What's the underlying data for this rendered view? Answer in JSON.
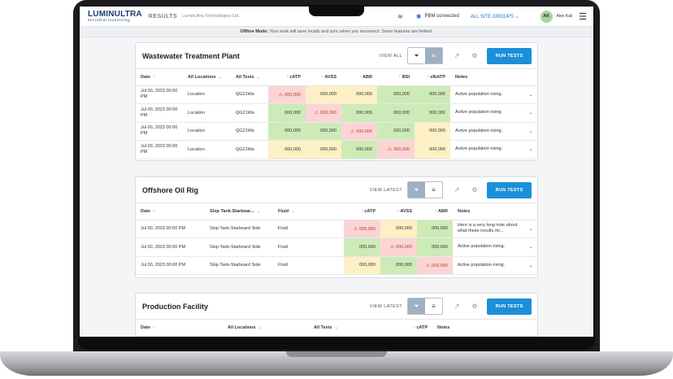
{
  "app": {
    "logo_main": "LUMINULTRA",
    "logo_sub": "microbial monitoring",
    "page": "RESULTS",
    "company": "LuminUltra Technologies Ltd.",
    "pbm_status": "PBM connected",
    "site_groups": "ALL SITE GROUPS",
    "avatar_initials": "AK",
    "user_name": "Alex Kali"
  },
  "offline_banner": {
    "title": "Offline Mode:",
    "message": "Your work will save locally and sync when you reconnect. Some features are limited."
  },
  "colors": {
    "good": "#cdebb7",
    "warning": "#fdf0c4",
    "alert": "#fbd5d5",
    "accent": "#1c8fd8"
  },
  "panels": [
    {
      "title": "Wastewater Treatment Plant",
      "view_label": "VIEW ALL",
      "run_label": "RUN TESTS",
      "headers": [
        "Date",
        "All Locations",
        "All Tests",
        "cATP",
        "AVSS",
        "ABR",
        "BSI",
        "sfbATP",
        "Notes"
      ],
      "rows": [
        {
          "date": "Jul 00, 2023 00:00 PM",
          "location": "Location",
          "test": "QG21Wa",
          "values": [
            {
              "v": "000,000",
              "s": "red"
            },
            {
              "v": "000,000",
              "s": "yellow"
            },
            {
              "v": "000,000",
              "s": "yellow"
            },
            {
              "v": "000,000",
              "s": "green"
            },
            {
              "v": "000,000",
              "s": "green"
            }
          ],
          "note": "Active population rising."
        },
        {
          "date": "Jul 00, 2023 00:00 PM",
          "location": "Location",
          "test": "QG21Wa",
          "values": [
            {
              "v": "000,000",
              "s": "green"
            },
            {
              "v": "000,000",
              "s": "red"
            },
            {
              "v": "000,000",
              "s": "green"
            },
            {
              "v": "000,000",
              "s": "green"
            },
            {
              "v": "000,000",
              "s": "green"
            }
          ],
          "note": "Active population rising."
        },
        {
          "date": "Jul 00, 2023 00:00 PM",
          "location": "Location",
          "test": "QG21Wa",
          "values": [
            {
              "v": "000,000",
              "s": "green"
            },
            {
              "v": "000,000",
              "s": "green"
            },
            {
              "v": "000,000",
              "s": "red"
            },
            {
              "v": "000,000",
              "s": "green"
            },
            {
              "v": "000,000",
              "s": "yellow"
            }
          ],
          "note": "Active population rising."
        },
        {
          "date": "Jul 00, 2023 00:00 PM",
          "location": "Location",
          "test": "QG21Wa",
          "values": [
            {
              "v": "000,000",
              "s": "yellow"
            },
            {
              "v": "000,000",
              "s": "yellow"
            },
            {
              "v": "000,000",
              "s": "green"
            },
            {
              "v": "000,000",
              "s": "red"
            },
            {
              "v": "000,000",
              "s": "yellow"
            }
          ],
          "note": "Active population rising."
        }
      ]
    },
    {
      "title": "Offshore Oil Rig",
      "view_label": "VIEW LATEST",
      "run_label": "RUN TESTS",
      "headers": [
        "Date",
        "Slop Tank-Starboar...",
        "Fluid",
        "cATP",
        "AVSS",
        "ABR",
        "Notes"
      ],
      "rows": [
        {
          "date": "Jul 00, 2023 00:00 PM",
          "location": "Slop Tank-Starboard Side",
          "test": "Fluid",
          "values": [
            {
              "v": "000,000",
              "s": "red"
            },
            {
              "v": "000,000",
              "s": "yellow"
            },
            {
              "v": "000,000",
              "s": "green"
            }
          ],
          "note": "Here is a very long note about what these results mi..."
        },
        {
          "date": "Jul 00, 2023 00:00 PM",
          "location": "Slop Tank-Starboard Side",
          "test": "Fluid",
          "values": [
            {
              "v": "000,000",
              "s": "green"
            },
            {
              "v": "000,000",
              "s": "red"
            },
            {
              "v": "000,000",
              "s": "green"
            }
          ],
          "note": "Active population rising."
        },
        {
          "date": "Jul 00, 2023 00:00 PM",
          "location": "Slop Tank-Starboard Side",
          "test": "Fluid",
          "values": [
            {
              "v": "000,000",
              "s": "yellow"
            },
            {
              "v": "000,000",
              "s": "green"
            },
            {
              "v": "000,000",
              "s": "red"
            }
          ],
          "note": "Active population rising."
        }
      ]
    },
    {
      "title": "Production Facility",
      "view_label": "VIEW LATEST",
      "run_label": "RUN TESTS",
      "headers": [
        "Date",
        "All Locations",
        "All Tests",
        "cATP",
        "Notes"
      ],
      "rows": []
    }
  ]
}
